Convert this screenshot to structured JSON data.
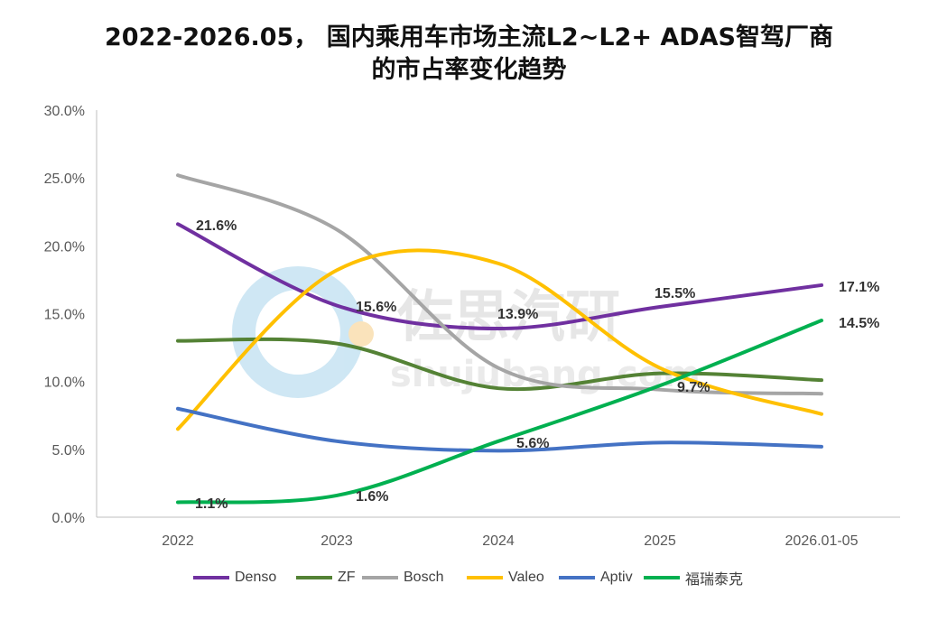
{
  "title_line1": "2022-2026.05， 国内乘用车市场主流L2~L2+ ADAS智驾厂商",
  "title_line2": "的市占率变化趋势",
  "watermark": {
    "name": "佐思汽研",
    "url": "shujubang.com"
  },
  "chart_data": {
    "type": "line",
    "title": "2022-2026.05， 国内乘用车市场主流L2~L2+ ADAS智驾厂商的市占率变化趋势",
    "categories": [
      "2022",
      "2023",
      "2024",
      "2025",
      "2026.01-05"
    ],
    "y_ticks": [
      "0.0%",
      "5.0%",
      "10.0%",
      "15.0%",
      "20.0%",
      "25.0%",
      "30.0%"
    ],
    "ylim": [
      0,
      30
    ],
    "legend_position": "bottom",
    "grid": false,
    "series": [
      {
        "name": "Denso",
        "color": "#7030A0",
        "values": [
          21.6,
          15.6,
          13.9,
          15.5,
          17.1
        ]
      },
      {
        "name": "ZF",
        "color": "#548235",
        "values": [
          13.0,
          12.8,
          9.5,
          10.6,
          10.1
        ]
      },
      {
        "name": "Bosch",
        "color": "#A5A5A5",
        "values": [
          25.2,
          21.2,
          11.0,
          9.4,
          9.1
        ]
      },
      {
        "name": "Valeo",
        "color": "#FFC000",
        "values": [
          6.5,
          18.2,
          18.7,
          11.0,
          7.6
        ]
      },
      {
        "name": "Aptiv",
        "color": "#4472C4",
        "values": [
          8.0,
          5.6,
          4.9,
          5.5,
          5.2
        ]
      },
      {
        "name": "福瑞泰克",
        "color": "#00B050",
        "values": [
          1.1,
          1.6,
          5.6,
          9.7,
          14.5
        ]
      }
    ],
    "data_labels": [
      "21.6%",
      "15.6%",
      "13.9%",
      "15.5%",
      "17.1%",
      "14.5%",
      "9.7%",
      "5.6%",
      "1.1%",
      "1.6%"
    ]
  }
}
